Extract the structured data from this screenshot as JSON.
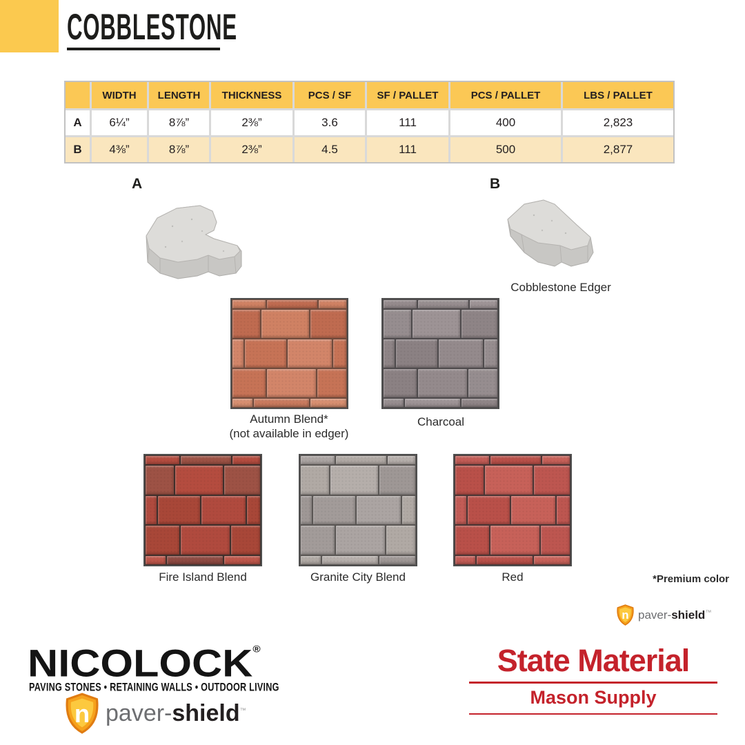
{
  "header": {
    "title": "COBBLESTONE",
    "accent_color": "#FBC94F"
  },
  "spec_table": {
    "columns": [
      "WIDTH",
      "LENGTH",
      "THICKNESS",
      "PCS / SF",
      "SF / PALLET",
      "PCS / PALLET",
      "LBS / PALLET"
    ],
    "rows": [
      {
        "label": "A",
        "cells": [
          "6¼”",
          "8⅞”",
          "2⅜”",
          "3.6",
          "111",
          "400",
          "2,823"
        ]
      },
      {
        "label": "B",
        "cells": [
          "4⅜”",
          "8⅞”",
          "2⅜”",
          "4.5",
          "111",
          "500",
          "2,877"
        ]
      }
    ],
    "header_bg": "#FBC855",
    "row_b_bg": "#FAE6BE"
  },
  "products": {
    "a_label": "A",
    "b_label": "B",
    "edger_caption": "Cobblestone Edger"
  },
  "swatches": [
    {
      "name": "Autumn Blend*",
      "note": "(not available in edger)",
      "mortar": "#6e4a3c",
      "palette": [
        "#cf8163",
        "#c67356",
        "#d68e70",
        "#bf6b50",
        "#d28569",
        "#c87a5e"
      ]
    },
    {
      "name": "Charcoal",
      "note": "",
      "mortar": "#4e4a4c",
      "palette": [
        "#948a8c",
        "#9d9395",
        "#8b8183",
        "#968d8f",
        "#8e8486"
      ]
    },
    {
      "name": "Fire Island Blend",
      "note": "",
      "mortar": "#3f2f2b",
      "palette": [
        "#b44c3f",
        "#a84738",
        "#bd564a",
        "#9d5245",
        "#b04a3e",
        "#8e4a42"
      ]
    },
    {
      "name": "Granite City Blend",
      "note": "",
      "mortar": "#5a5654",
      "palette": [
        "#aba4a2",
        "#b5aeaa",
        "#a29b99",
        "#b0a9a4",
        "#9e9795"
      ]
    },
    {
      "name": "Red",
      "note": "",
      "mortar": "#4a3534",
      "palette": [
        "#c25c56",
        "#bd5650",
        "#c76159",
        "#b95049"
      ]
    }
  ],
  "footnote": "*Premium color",
  "paver_shield": {
    "regular": "paver-",
    "bold": "shield",
    "tm": "™"
  },
  "nicolock": {
    "name": "NICOLOCK",
    "reg": "®",
    "tagline": "PAVING STONES • RETAINING WALLS • OUTDOOR LIVING"
  },
  "state_material": {
    "line1": "State Material",
    "line2": "Mason Supply",
    "color": "#C4222B"
  }
}
